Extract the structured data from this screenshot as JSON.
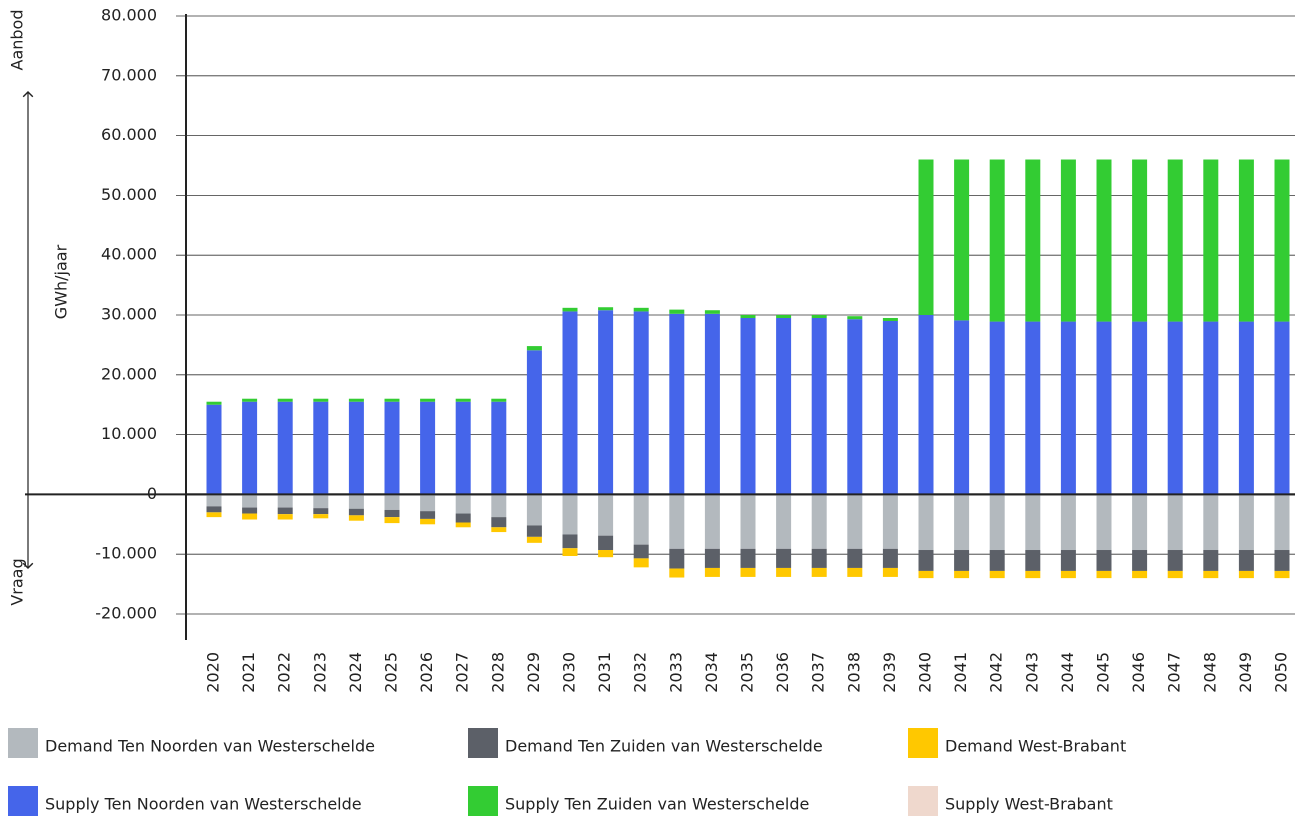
{
  "chart_data": {
    "type": "stacked_bar",
    "y_label": "GWh/jaar",
    "annotations": [
      "Aanbod",
      "Vraag"
    ],
    "categories": [
      "2020",
      "2021",
      "2022",
      "2023",
      "2024",
      "2025",
      "2026",
      "2027",
      "2028",
      "2029",
      "2030",
      "2031",
      "2032",
      "2033",
      "2034",
      "2035",
      "2036",
      "2037",
      "2038",
      "2039",
      "2040",
      "2041",
      "2042",
      "2043",
      "2044",
      "2045",
      "2046",
      "2047",
      "2048",
      "2049",
      "2050"
    ],
    "series": [
      {
        "name": "Demand Ten Noorden van Westerschelde",
        "color": "#b3b9be",
        "values": [
          -2000,
          -2200,
          -2200,
          -2300,
          -2400,
          -2600,
          -2800,
          -3200,
          -3800,
          -5200,
          -6700,
          -6900,
          -8400,
          -9100,
          -9100,
          -9100,
          -9100,
          -9100,
          -9100,
          -9100,
          -9300,
          -9300,
          -9300,
          -9300,
          -9300,
          -9300,
          -9300,
          -9300,
          -9300,
          -9300,
          -9300
        ]
      },
      {
        "name": "Demand Ten Zuiden van Westerschelde",
        "color": "#5c6068",
        "values": [
          -1000,
          -1000,
          -1100,
          -1000,
          -1100,
          -1200,
          -1300,
          -1500,
          -1700,
          -1900,
          -2300,
          -2400,
          -2300,
          -3300,
          -3200,
          -3200,
          -3200,
          -3200,
          -3200,
          -3200,
          -3500,
          -3500,
          -3500,
          -3500,
          -3500,
          -3500,
          -3500,
          -3500,
          -3500,
          -3500,
          -3500
        ]
      },
      {
        "name": "Demand West-Brabant",
        "color": "#ffc800",
        "values": [
          -800,
          -1000,
          -900,
          -700,
          -900,
          -1000,
          -900,
          -800,
          -800,
          -1000,
          -1300,
          -1200,
          -1500,
          -1500,
          -1500,
          -1500,
          -1500,
          -1500,
          -1500,
          -1500,
          -1200,
          -1200,
          -1200,
          -1200,
          -1200,
          -1200,
          -1200,
          -1200,
          -1200,
          -1200,
          -1200
        ]
      },
      {
        "name": "Supply Ten Noorden van Westerschelde",
        "color": "#4565ea",
        "values": [
          15000,
          15500,
          15500,
          15500,
          15500,
          15500,
          15500,
          15500,
          15500,
          24100,
          30600,
          30800,
          30600,
          30200,
          30200,
          29500,
          29500,
          29500,
          29300,
          29000,
          30000,
          29100,
          28900,
          28900,
          28900,
          28900,
          28900,
          28900,
          28900,
          28900,
          28900
        ]
      },
      {
        "name": "Supply Ten Zuiden van Westerschelde",
        "color": "#33cc33",
        "values": [
          500,
          500,
          500,
          500,
          500,
          500,
          500,
          500,
          500,
          700,
          600,
          500,
          600,
          700,
          600,
          500,
          500,
          500,
          500,
          500,
          26000,
          26900,
          27100,
          27100,
          27100,
          27100,
          27100,
          27100,
          27100,
          27100,
          27100
        ]
      },
      {
        "name": "Supply West-Brabant",
        "color": "#efd8cd",
        "values": [
          0,
          0,
          0,
          0,
          0,
          0,
          0,
          0,
          0,
          0,
          0,
          0,
          0,
          0,
          0,
          0,
          0,
          0,
          0,
          0,
          0,
          0,
          0,
          0,
          0,
          0,
          0,
          0,
          0,
          0,
          0
        ]
      }
    ],
    "ylim": [
      -20000,
      80000
    ],
    "yticks": [
      {
        "value": -20000,
        "label": "-20.000"
      },
      {
        "value": -10000,
        "label": "-10.000"
      },
      0,
      {
        "value": 10000,
        "label": "10.000"
      },
      {
        "value": 20000,
        "label": "20.000"
      },
      {
        "value": 30000,
        "label": "30.000"
      },
      {
        "value": 40000,
        "label": "40.000"
      },
      {
        "value": 50000,
        "label": "50.000"
      },
      {
        "value": 60000,
        "label": "60.000"
      },
      {
        "value": 70000,
        "label": "70.000"
      },
      {
        "value": 80000,
        "label": "80.000"
      }
    ],
    "grid": true
  }
}
